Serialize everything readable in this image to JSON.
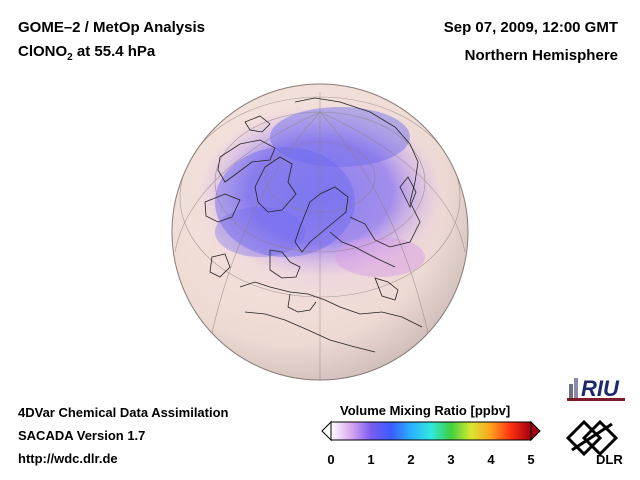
{
  "header": {
    "instrument": "GOME–2 / MetOp Analysis",
    "species_prefix": "ClONO",
    "species_sub": "2",
    "species_suffix": " at 55.4 hPa",
    "datetime": "Sep 07, 2009, 12:00 GMT",
    "region": "Northern Hemisphere"
  },
  "footer": {
    "line1": "4DVar Chemical Data Assimilation",
    "line2": "SACADA Version 1.7",
    "line3": "http://wdc.dlr.de"
  },
  "colorbar": {
    "title": "Volume Mixing Ratio [ppbv]",
    "ticks": [
      "0",
      "1",
      "2",
      "3",
      "4",
      "5"
    ],
    "min": 0,
    "max": 5,
    "colors": [
      "#ffffff",
      "#d8a8f0",
      "#7a5cf0",
      "#3a5cff",
      "#2ab0ff",
      "#30e8e0",
      "#40d040",
      "#d8e830",
      "#ffa020",
      "#ff3010",
      "#a00010"
    ]
  },
  "map": {
    "projection": "orthographic",
    "center": "North Pole view",
    "description": "ClONO2 field over Northern Hemisphere"
  },
  "logos": {
    "riu": "RIU",
    "dlr": "DLR"
  }
}
